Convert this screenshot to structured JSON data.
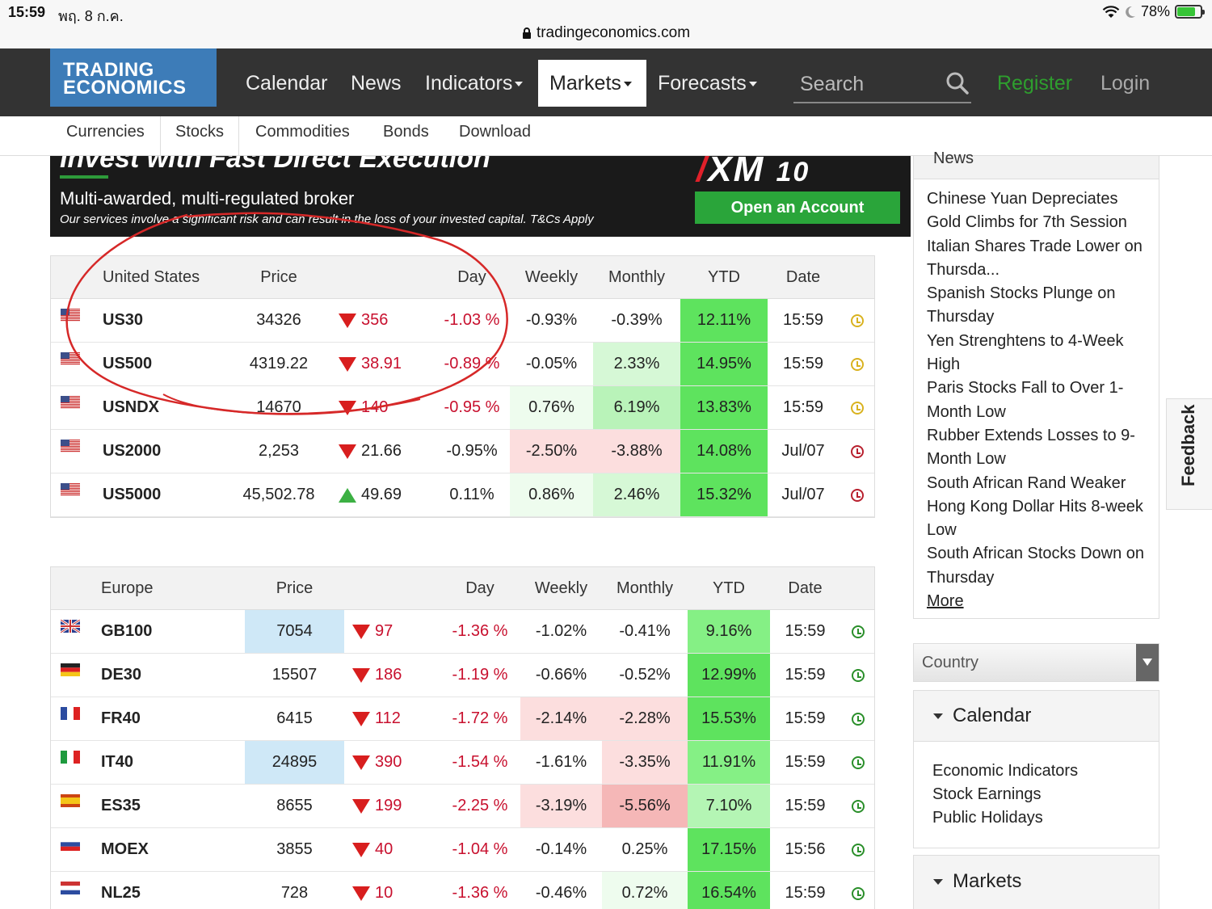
{
  "status_bar": {
    "time": "15:59",
    "date": "พฤ. 8 ก.ค.",
    "battery": "78%",
    "battery_level": 0.78
  },
  "browser": {
    "url": "tradingeconomics.com"
  },
  "nav": {
    "logo_line1": "TRADING",
    "logo_line2": "ECONOMICS",
    "items": [
      {
        "label": "Calendar"
      },
      {
        "label": "News"
      },
      {
        "label": "Indicators"
      },
      {
        "label": "Markets"
      },
      {
        "label": "Forecasts"
      }
    ],
    "search_placeholder": "Search",
    "register": "Register",
    "login": "Login"
  },
  "subnav": {
    "items": [
      "Currencies",
      "Stocks",
      "Commodities",
      "Bonds",
      "Download"
    ]
  },
  "ad": {
    "headline": "Invest with Fast Direct Execution",
    "subline": "Multi-awarded, multi-regulated broker",
    "disclaimer": "Our services involve a significant risk and can result in the loss of your invested capital. T&Cs Apply",
    "brand": "XM",
    "brand_tag": "10",
    "cta": "Open an Account"
  },
  "us_table": {
    "headers": [
      "United States",
      "Price",
      "Day",
      "Weekly",
      "Monthly",
      "YTD",
      "Date"
    ],
    "rows": [
      {
        "symbol": "US30",
        "price": "34326",
        "change": "356",
        "dir": "down",
        "day": "-1.03 %",
        "weekly": "-0.93%",
        "monthly": "-0.39%",
        "ytd": "12.11%",
        "date": "15:59",
        "clock": "y"
      },
      {
        "symbol": "US500",
        "price": "4319.22",
        "change": "38.91",
        "dir": "down",
        "day": "-0.89 %",
        "weekly": "-0.05%",
        "monthly": "2.33%",
        "ytd": "14.95%",
        "date": "15:59",
        "clock": "y"
      },
      {
        "symbol": "USNDX",
        "price": "14670",
        "change": "140",
        "dir": "down",
        "day": "-0.95 %",
        "weekly": "0.76%",
        "monthly": "6.19%",
        "ytd": "13.83%",
        "date": "15:59",
        "clock": "y"
      },
      {
        "symbol": "US2000",
        "price": "2,253",
        "change": "21.66",
        "dir": "down",
        "day": "-0.95%",
        "weekly": "-2.50%",
        "monthly": "-3.88%",
        "ytd": "14.08%",
        "date": "Jul/07",
        "clock": "r"
      },
      {
        "symbol": "US5000",
        "price": "45,502.78",
        "change": "49.69",
        "dir": "up",
        "day": "0.11%",
        "weekly": "0.86%",
        "monthly": "2.46%",
        "ytd": "15.32%",
        "date": "Jul/07",
        "clock": "r"
      }
    ]
  },
  "eu_table": {
    "headers": [
      "Europe",
      "Price",
      "Day",
      "Weekly",
      "Monthly",
      "YTD",
      "Date"
    ],
    "rows": [
      {
        "symbol": "GB100",
        "price": "7054",
        "change": "97",
        "dir": "down",
        "day": "-1.36 %",
        "weekly": "-1.02%",
        "monthly": "-0.41%",
        "ytd": "9.16%",
        "date": "15:59",
        "clock": "g"
      },
      {
        "symbol": "DE30",
        "price": "15507",
        "change": "186",
        "dir": "down",
        "day": "-1.19 %",
        "weekly": "-0.66%",
        "monthly": "-0.52%",
        "ytd": "12.99%",
        "date": "15:59",
        "clock": "g"
      },
      {
        "symbol": "FR40",
        "price": "6415",
        "change": "112",
        "dir": "down",
        "day": "-1.72 %",
        "weekly": "-2.14%",
        "monthly": "-2.28%",
        "ytd": "15.53%",
        "date": "15:59",
        "clock": "g"
      },
      {
        "symbol": "IT40",
        "price": "24895",
        "change": "390",
        "dir": "down",
        "day": "-1.54 %",
        "weekly": "-1.61%",
        "monthly": "-3.35%",
        "ytd": "11.91%",
        "date": "15:59",
        "clock": "g"
      },
      {
        "symbol": "ES35",
        "price": "8655",
        "change": "199",
        "dir": "down",
        "day": "-2.25 %",
        "weekly": "-3.19%",
        "monthly": "-5.56%",
        "ytd": "7.10%",
        "date": "15:59",
        "clock": "g"
      },
      {
        "symbol": "MOEX",
        "price": "3855",
        "change": "40",
        "dir": "down",
        "day": "-1.04 %",
        "weekly": "-0.14%",
        "monthly": "0.25%",
        "ytd": "17.15%",
        "date": "15:56",
        "clock": "g"
      },
      {
        "symbol": "NL25",
        "price": "728",
        "change": "10",
        "dir": "down",
        "day": "-1.36 %",
        "weekly": "-0.46%",
        "monthly": "0.72%",
        "ytd": "16.54%",
        "date": "15:59",
        "clock": "g"
      }
    ]
  },
  "news": {
    "title": "News",
    "items": [
      "Chinese Yuan Depreciates",
      "Gold Climbs for 7th Session",
      "Italian Shares Trade Lower on",
      "Thursda...",
      "Spanish Stocks Plunge on",
      "Thursday",
      "Yen Strenghtens to 4-Week",
      "High",
      "Paris Stocks Fall to Over 1-",
      "Month Low",
      "Rubber Extends Losses to 9-",
      "Month Low",
      "South African Rand Weaker",
      "Hong Kong Dollar Hits 8-week",
      "Low",
      "South African Stocks Down on",
      "Thursday"
    ],
    "more": "More"
  },
  "sidebar": {
    "country_select": "Country",
    "calendar_title": "Calendar",
    "calendar_links": [
      "Economic Indicators",
      "Stock Earnings",
      "Public Holidays"
    ],
    "markets_title": "Markets"
  },
  "feedback": "Feedback",
  "colors": {
    "nav_bg": "#333333",
    "logo_bg": "#3d7cb8",
    "register": "#2e9e2e",
    "neg_text": "#c8102e",
    "down_arrow": "#d81e1e",
    "up_arrow": "#3cb043",
    "annotation": "#d62828"
  }
}
